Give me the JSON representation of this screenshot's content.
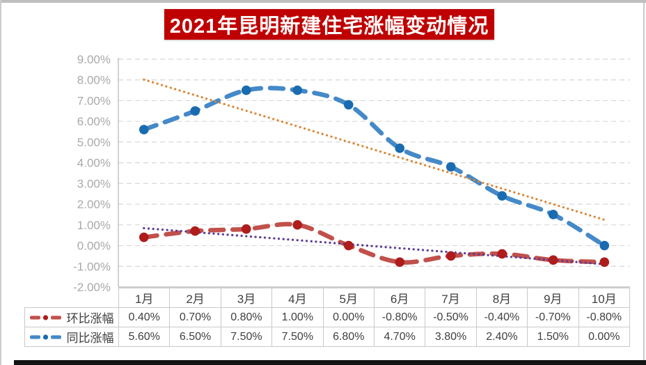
{
  "title": {
    "text": "2021年昆明新建住宅涨幅变动情况",
    "bg_color": "#c00000",
    "text_color": "#ffffff"
  },
  "chart_data": {
    "type": "line",
    "title": "2021年昆明新建住宅涨幅变动情况",
    "categories": [
      "1月",
      "2月",
      "3月",
      "4月",
      "5月",
      "6月",
      "7月",
      "8月",
      "9月",
      "10月"
    ],
    "series": [
      {
        "name": "环比涨幅",
        "values": [
          0.4,
          0.7,
          0.8,
          1.0,
          0.0,
          -0.8,
          -0.5,
          -0.4,
          -0.7,
          -0.8
        ],
        "formatted": [
          "0.40%",
          "0.70%",
          "0.80%",
          "1.00%",
          "0.00%",
          "-0.80%",
          "-0.50%",
          "-0.40%",
          "-0.70%",
          "-0.80%"
        ],
        "line_color": "#c1504b",
        "marker_color": "#ae1c1c",
        "trendline": "linear",
        "trendline_color": "#5d3c94"
      },
      {
        "name": "同比涨幅",
        "values": [
          5.6,
          6.5,
          7.5,
          7.5,
          6.8,
          4.7,
          3.8,
          2.4,
          1.5,
          0.0
        ],
        "formatted": [
          "5.60%",
          "6.50%",
          "7.50%",
          "7.50%",
          "6.80%",
          "4.70%",
          "3.80%",
          "2.40%",
          "1.50%",
          "0.00%"
        ],
        "line_color": "#4489c8",
        "marker_color": "#1a6bb0",
        "trendline": "linear",
        "trendline_color": "#db8532"
      }
    ],
    "xlabel": "",
    "ylabel": "",
    "ylim": [
      -2,
      9
    ],
    "ytick_step": 1,
    "ytick_labels": [
      "9.00%",
      "8.00%",
      "7.00%",
      "6.00%",
      "5.00%",
      "4.00%",
      "3.00%",
      "2.00%",
      "1.00%",
      "0.00%",
      "-1.00%",
      "-2.00%"
    ],
    "grid": true,
    "legend_position": "table-row-headers"
  }
}
